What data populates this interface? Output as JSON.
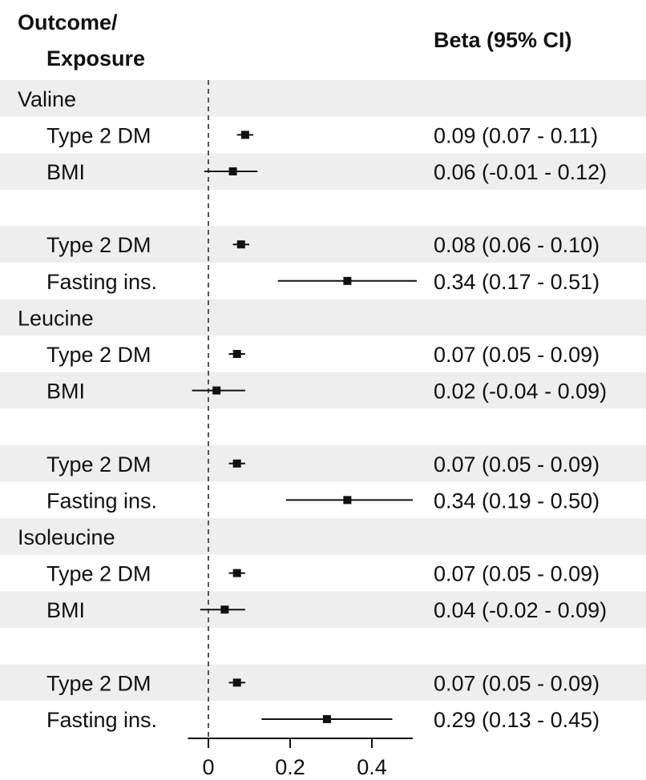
{
  "chart_data": {
    "type": "forest",
    "headers": {
      "outcome_exposure": [
        "Outcome/",
        "Exposure"
      ],
      "estimate": "Beta (95% CI)"
    },
    "xlim": [
      -0.05,
      0.5
    ],
    "xticks": [
      0,
      0.2,
      0.4
    ],
    "xtick_labels": [
      "0",
      "0.2",
      "0.4"
    ],
    "reference_line": 0,
    "rows": [
      {
        "kind": "group",
        "label": "Valine"
      },
      {
        "kind": "item",
        "label": "Type 2 DM",
        "beta": 0.09,
        "lower": 0.07,
        "upper": 0.11,
        "ci_text": "0.09 (0.07 - 0.11)"
      },
      {
        "kind": "item",
        "label": "BMI",
        "beta": 0.06,
        "lower": -0.01,
        "upper": 0.12,
        "ci_text": "0.06 (-0.01 - 0.12)"
      },
      {
        "kind": "spacer",
        "label": ""
      },
      {
        "kind": "item",
        "label": "Type 2 DM",
        "beta": 0.08,
        "lower": 0.06,
        "upper": 0.1,
        "ci_text": "0.08 (0.06 - 0.10)"
      },
      {
        "kind": "item",
        "label": "Fasting ins.",
        "beta": 0.34,
        "lower": 0.17,
        "upper": 0.51,
        "ci_text": "0.34 (0.17 - 0.51)"
      },
      {
        "kind": "group",
        "label": "Leucine"
      },
      {
        "kind": "item",
        "label": "Type 2 DM",
        "beta": 0.07,
        "lower": 0.05,
        "upper": 0.09,
        "ci_text": "0.07 (0.05 - 0.09)"
      },
      {
        "kind": "item",
        "label": "BMI",
        "beta": 0.02,
        "lower": -0.04,
        "upper": 0.09,
        "ci_text": "0.02 (-0.04 - 0.09)"
      },
      {
        "kind": "spacer",
        "label": ""
      },
      {
        "kind": "item",
        "label": "Type 2 DM",
        "beta": 0.07,
        "lower": 0.05,
        "upper": 0.09,
        "ci_text": "0.07 (0.05 - 0.09)"
      },
      {
        "kind": "item",
        "label": "Fasting ins.",
        "beta": 0.34,
        "lower": 0.19,
        "upper": 0.5,
        "ci_text": "0.34 (0.19 - 0.50)"
      },
      {
        "kind": "group",
        "label": "Isoleucine"
      },
      {
        "kind": "item",
        "label": "Type 2 DM",
        "beta": 0.07,
        "lower": 0.05,
        "upper": 0.09,
        "ci_text": "0.07 (0.05 - 0.09)"
      },
      {
        "kind": "item",
        "label": "BMI",
        "beta": 0.04,
        "lower": -0.02,
        "upper": 0.09,
        "ci_text": "0.04 (-0.02 - 0.09)"
      },
      {
        "kind": "spacer",
        "label": ""
      },
      {
        "kind": "item",
        "label": "Type 2 DM",
        "beta": 0.07,
        "lower": 0.05,
        "upper": 0.09,
        "ci_text": "0.07 (0.05 - 0.09)"
      },
      {
        "kind": "item",
        "label": "Fasting ins.",
        "beta": 0.29,
        "lower": 0.13,
        "upper": 0.45,
        "ci_text": "0.29 (0.13 - 0.45)"
      }
    ],
    "band_color": "#eeeeee",
    "mark_color": "#111111",
    "grid": false,
    "legend": "none"
  }
}
